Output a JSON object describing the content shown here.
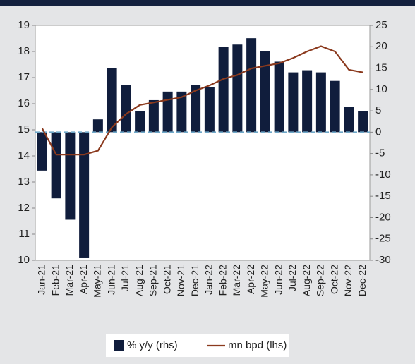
{
  "chart_data": {
    "type": "bar-line",
    "categories": [
      "Jan-21",
      "Feb-21",
      "Mar-21",
      "Apr-21",
      "May-21",
      "Jun-21",
      "Jul-21",
      "Aug-21",
      "Sep-21",
      "Oct-21",
      "Nov-21",
      "Dec-21",
      "Jan-22",
      "Feb-22",
      "Mar-22",
      "Apr-22",
      "May-22",
      "Jun-22",
      "Jul-22",
      "Aug-22",
      "Sep-22",
      "Oct-22",
      "Nov-22",
      "Dec-22"
    ],
    "series": [
      {
        "name": "% y/y (rhs)",
        "type": "bar",
        "axis": "y2",
        "color": "#101d3c",
        "values": [
          -9,
          -15.5,
          -20.5,
          -29.5,
          3,
          15,
          11,
          5,
          7.5,
          9.5,
          9.5,
          11,
          10.5,
          20,
          20.5,
          22,
          19,
          16.5,
          14,
          14.5,
          14,
          12,
          6,
          5
        ]
      },
      {
        "name": "mn bpd (lhs)",
        "type": "line",
        "axis": "y",
        "color": "#8b3a1e",
        "values": [
          15.05,
          14.05,
          14.05,
          14.05,
          14.2,
          15.1,
          15.6,
          15.95,
          16.05,
          16.15,
          16.25,
          16.5,
          16.7,
          16.95,
          17.1,
          17.35,
          17.45,
          17.55,
          17.75,
          18.0,
          18.2,
          18.0,
          17.3,
          17.2
        ]
      }
    ],
    "ylim": [
      10,
      19
    ],
    "yticks": [
      10,
      11,
      12,
      13,
      14,
      15,
      16,
      17,
      18,
      19
    ],
    "y2lim": [
      -30,
      25
    ],
    "y2ticks": [
      -30,
      -25,
      -20,
      -15,
      -10,
      -5,
      0,
      5,
      10,
      15,
      20,
      25
    ],
    "zero_line_color": "#6fa8c8"
  }
}
